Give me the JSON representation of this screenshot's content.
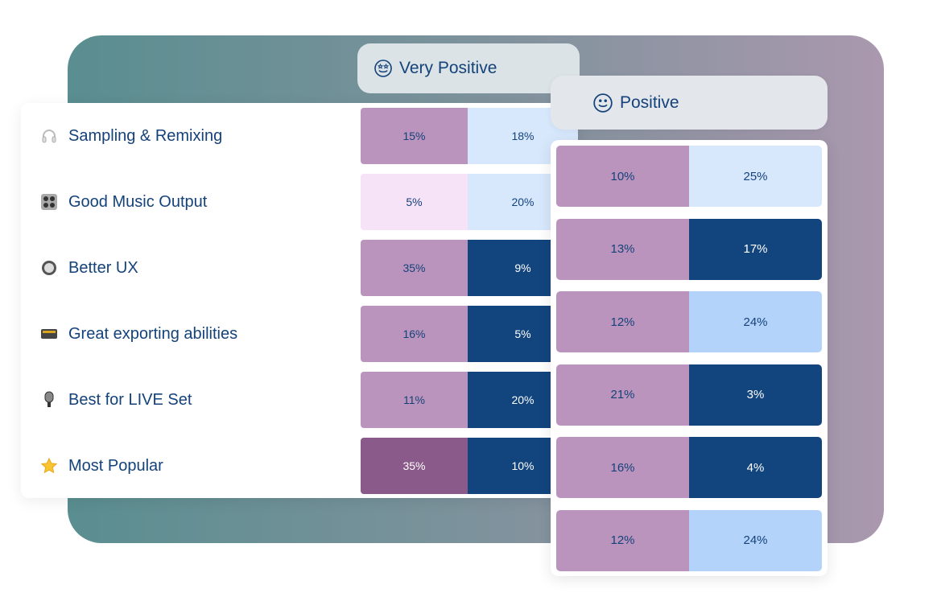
{
  "headers": {
    "very_positive": "Very Positive",
    "positive": "Positive"
  },
  "colors": {
    "mauve": "#bb94bd",
    "pink": "#f7e3f8",
    "light_blue": "#d8e8fc",
    "navy": "#12457e",
    "mid_blue": "#b4d3fb",
    "dark_purple": "#8a5a8a",
    "text": "#14427a"
  },
  "rows": [
    {
      "label": "Sampling & Remixing",
      "icon": "headphones-icon",
      "very_positive": [
        "15%",
        "18%"
      ],
      "vp_colors": [
        "mauve",
        "light_blue"
      ],
      "positive": [
        "10%",
        "25%"
      ],
      "p_colors": [
        "mauve",
        "light_blue"
      ]
    },
    {
      "label": "Good Music Output",
      "icon": "control-knobs-icon",
      "very_positive": [
        "5%",
        "20%"
      ],
      "vp_colors": [
        "pink",
        "light_blue"
      ],
      "positive": [
        "13%",
        "17%"
      ],
      "p_colors": [
        "mauve",
        "navy"
      ]
    },
    {
      "label": "Better UX",
      "icon": "button-icon",
      "very_positive": [
        "35%",
        "9%"
      ],
      "vp_colors": [
        "mauve",
        "navy"
      ],
      "positive": [
        "12%",
        "24%"
      ],
      "p_colors": [
        "mauve",
        "mid_blue"
      ]
    },
    {
      "label": "Great exporting abilities",
      "icon": "radio-icon",
      "very_positive": [
        "16%",
        "5%"
      ],
      "vp_colors": [
        "mauve",
        "navy"
      ],
      "positive": [
        "21%",
        "3%"
      ],
      "p_colors": [
        "mauve",
        "navy"
      ]
    },
    {
      "label": "Best for LIVE Set",
      "icon": "microphone-icon",
      "very_positive": [
        "11%",
        "20%"
      ],
      "vp_colors": [
        "mauve",
        "navy"
      ],
      "positive": [
        "16%",
        "4%"
      ],
      "p_colors": [
        "mauve",
        "navy"
      ]
    },
    {
      "label": "Most Popular",
      "icon": "star-icon",
      "very_positive": [
        "35%",
        "10%"
      ],
      "vp_colors": [
        "dark_purple",
        "navy"
      ],
      "positive": [
        "12%",
        "24%"
      ],
      "p_colors": [
        "mauve",
        "mid_blue"
      ]
    }
  ]
}
